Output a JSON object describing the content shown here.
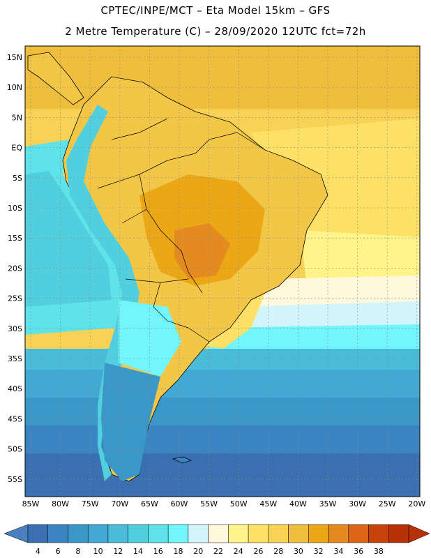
{
  "header": {
    "line1": "CPTEC/INPE/MCT  –   Eta Model 15km  –  GFS",
    "line2": "2 Metre Temperature (C)  –  28/09/2020 12UTC fct=72h"
  },
  "map": {
    "lat_labels": [
      "15N",
      "10N",
      "5N",
      "EQ",
      "5S",
      "10S",
      "15S",
      "20S",
      "25S",
      "30S",
      "35S",
      "40S",
      "45S",
      "50S",
      "55S"
    ],
    "lon_labels": [
      "85W",
      "80W",
      "75W",
      "70W",
      "65W",
      "60W",
      "55W",
      "50W",
      "45W",
      "40W",
      "35W",
      "30W",
      "25W",
      "20W"
    ],
    "field": "2 Metre Temperature (C)"
  },
  "colorbar": {
    "labels": [
      "4",
      "6",
      "8",
      "10",
      "12",
      "14",
      "16",
      "18",
      "20",
      "22",
      "24",
      "26",
      "28",
      "30",
      "32",
      "34",
      "36",
      "38"
    ],
    "colors": [
      "#3a6fb2",
      "#3a85c1",
      "#3c97c9",
      "#41a9d4",
      "#48bcd8",
      "#52cfde",
      "#5fe3eb",
      "#72f5fb",
      "#d2f5fb",
      "#fff8dc",
      "#fff48a",
      "#fde166",
      "#f8d254",
      "#efbe3c",
      "#eba715",
      "#e58a1f",
      "#dc6616",
      "#c8420b",
      "#b63107"
    ],
    "low_arrow_color": "#4a7fc0",
    "high_arrow_color": "#b63107"
  }
}
